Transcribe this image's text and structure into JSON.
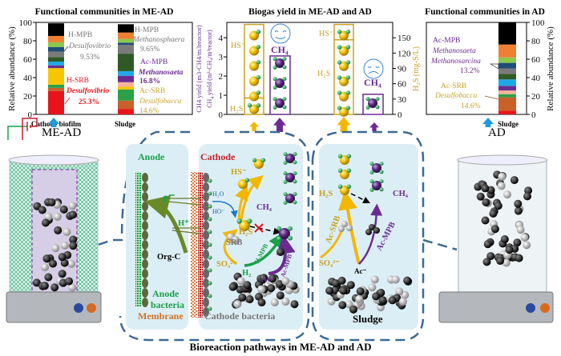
{
  "colors": {
    "h2s": "#c9a227",
    "ch4": "#6a2c91",
    "hsrb": "#e8141c",
    "anode": "#1aa04a",
    "cathode": "#c8202a",
    "membrane": "#d0722a",
    "arrow_blue": "#1e9be0",
    "dash": "#3c6a94",
    "gray_text": "#777777"
  },
  "left_chart": {
    "title": "Functional communities in ME-AD",
    "ylabel": "Relative abundance (%)",
    "ann": {
      "hmpb1": "H-MPB",
      "desulfo1": "Desulfovibrio",
      "pct1": "9.53%",
      "hsrb": "H-SRB",
      "desulfo2": "Desulfovibrio",
      "pct2": "25.3%",
      "hmpb2": "H-MPB",
      "methano": "Methanosphaera",
      "pct3": "9.65%",
      "acmpb": "Ac-MPB",
      "methanosaeta": "Methanosaeta",
      "pct4": "16.8%",
      "acsrb": "Ac-SRB",
      "desulfobacca": "Desulfobacca",
      "pct5": "14.6%"
    }
  },
  "mid_chart": {
    "title": "Biogas yield in ME-AD and AD",
    "ylabel_left_1": "CH",
    "ylabel_left_sub": "4",
    "ylabel_left_2": " yield",
    "ylabel_left_line2": "(m³-CH₄/m³reactor)",
    "ylabel_right": "H₂S (mg-S/L)",
    "labels": {
      "hs": "HS⁻",
      "h2s": "H₂S",
      "ch4": "CH₄"
    }
  },
  "right_chart": {
    "title": "Functional communities in AD",
    "ylabel": "Relative abundance (%)",
    "ann": {
      "acmpb": "Ac-MPB",
      "methanosaeta": "Methanosaeta",
      "methanosarcina": "Methanosarcina",
      "pct1": "13.2%",
      "acsrb": "Ac-SRB",
      "desulfobacca": "Desulfobacca",
      "pct2": "14.6%"
    }
  },
  "reactors": {
    "mead": "ME-AD",
    "ad": "AD"
  },
  "mead_panel": {
    "anode": "Anode",
    "cathode": "Cathode",
    "e": "e⁻",
    "h": "H⁺",
    "orgc": "Org-C",
    "anode_bacteria_1": "Anode",
    "anode_bacteria_2": "bacteria",
    "membrane": "Membrane",
    "cathode_bacteria": "Cathode bacteria",
    "h2o": "H₂O",
    "ho": "HO⁻",
    "hs": "HS⁻",
    "ch4": "CH₄",
    "h2s": "H₂S",
    "srb": "SRB",
    "so4": "SO₄²⁻",
    "h2": "H₂",
    "hmpb": "H-MPB",
    "ac": "Ac-",
    "acmpb": "Ac-MPB"
  },
  "ad_panel": {
    "h2s": "H₂S",
    "ch4": "CH₄",
    "acsrb": "Ac-SRB",
    "acmpb": "Ac-MPB",
    "so4": "SO₄²⁻",
    "ac": "Ac⁻",
    "sludge": "Sludge"
  },
  "footer": {
    "title": "Bioreaction pathways in ME-AD and AD"
  },
  "icons": [
    "happy-face-icon",
    "sad-face-icon",
    "up-arrow-icon",
    "power-wire-icon",
    "molecule-icon"
  ],
  "chart_data": [
    {
      "type": "bar",
      "stacked": true,
      "title": "Functional communities in ME-AD",
      "ylabel": "Relative abundance (%)",
      "ylim": [
        0,
        100
      ],
      "yticks": [
        0,
        20,
        40,
        60,
        80,
        100
      ],
      "categories": [
        "Cathode biofilm",
        "Sludge"
      ],
      "segment_colors": [
        "#e8141c",
        "#c8602a",
        "#2aa048",
        "#f7c600",
        "#f5b49a",
        "#6a2c91",
        "#1fa8e8",
        "#2f5a28",
        "#7a7a7a",
        "#1f4e79",
        "#8cc84b",
        "#ee7f33",
        "#000000"
      ],
      "segments": [
        [
          25.3,
          3.5,
          3.5,
          18,
          0,
          3,
          4,
          5,
          6,
          5,
          5,
          7,
          13.7
        ],
        [
          6,
          9,
          12,
          3,
          5,
          7,
          5,
          19,
          9.65,
          2.35,
          4,
          7,
          9
        ]
      ]
    },
    {
      "type": "bar",
      "title": "Biogas yield in ME-AD and AD",
      "categories": [
        "ME-AD",
        "AD"
      ],
      "y_left": {
        "label": "CH4 yield (m3-CH4/m3reactor)",
        "ylim": [
          0,
          4.8
        ],
        "yticks": [
          0,
          1,
          2,
          3,
          4
        ]
      },
      "y_right": {
        "label": "H2S (mg-S/L)",
        "ylim": [
          0,
          180
        ],
        "yticks": [
          0,
          30,
          60,
          90,
          120,
          150
        ]
      },
      "series": [
        {
          "name": "H2S",
          "axis": "right",
          "values": [
            32,
            146
          ]
        },
        {
          "name": "HS-",
          "axis": "right",
          "values": [
            144,
            30
          ]
        },
        {
          "name": "CH4",
          "axis": "left",
          "values": [
            3.05,
            1.05
          ]
        }
      ]
    },
    {
      "type": "bar",
      "stacked": true,
      "title": "Functional communities in AD",
      "ylabel": "Relative abundance (%)",
      "ylim": [
        0,
        100
      ],
      "yticks": [
        0,
        20,
        40,
        60,
        80,
        100
      ],
      "categories": [
        "Sludge"
      ],
      "segment_colors": [
        "#e8141c",
        "#c8602a",
        "#2aa048",
        "#f5b49a",
        "#6a2c91",
        "#1fa8e8",
        "#2f5a28",
        "#7a7a7a",
        "#1f4e79",
        "#8cc84b",
        "#ee7f33",
        "#000000"
      ],
      "segments": [
        [
          4,
          14.6,
          3.4,
          4,
          5,
          7,
          6,
          6,
          6,
          6,
          14,
          24
        ]
      ]
    }
  ]
}
